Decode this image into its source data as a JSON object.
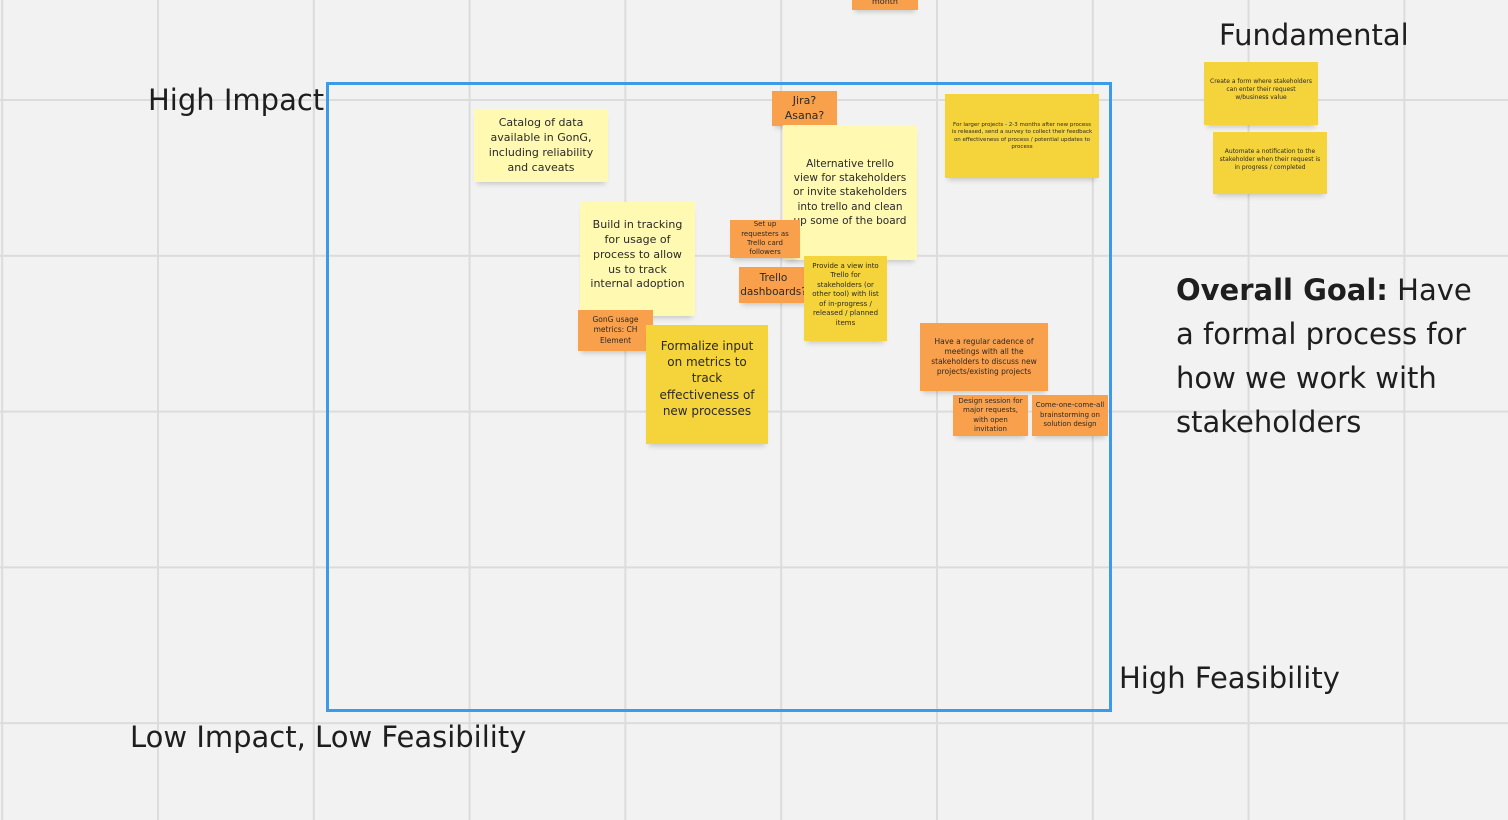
{
  "axis_labels": {
    "high_impact": "High Impact",
    "high_feasibility": "High Feasibility",
    "low_impact_low_feasibility": "Low Impact, Low Feasibility",
    "fundamental": "Fundamental"
  },
  "goal": {
    "label": "Overall Goal:",
    "text": "Have a formal process for how we work with stakeholders"
  },
  "notes": {
    "from_past_month": "from past month",
    "catalog_of_data": "Catalog of data available in GonG, including reliability and caveats",
    "jira_asana": "Jira? Asana?",
    "alternative_trello_view": "Alternative trello view for stakeholders or invite stakeholders into trello and clean up some of the board",
    "larger_projects_survey": "For larger projects - 2-3 months after new process is released, send a survey to collect their feedback on effectiveness of process / potential updates to process",
    "create_form": "Create a form where stakeholders can enter their request w/business value",
    "automate_notification": "Automate a notification to the stakeholder when their request is in progress / completed",
    "build_in_tracking": "Build in tracking for usage of process to allow us to track internal adoption",
    "set_up_requesters": "Set up requesters as Trello card followers",
    "trello_dashboards": "Trello dashboards?",
    "provide_view_trello": "Provide a view into Trello for stakeholders (or other tool) with list of in-progress / released / planned items",
    "gong_usage_metrics": "GonG usage metrics: CH Element",
    "formalize_input": "Formalize input on metrics to track effectiveness of new processes",
    "regular_cadence": "Have a regular cadence of meetings with all the stakeholders to discuss new projects/existing projects",
    "design_session": "Design session for major requests, with open invitation",
    "come_one_come_all": "Come-one-come-all brainstorming on solution design"
  },
  "colors": {
    "frame": "#3b9be8",
    "pale_yellow": "#fff9b2",
    "yellow": "#f5d33b",
    "orange": "#f9a04c"
  }
}
